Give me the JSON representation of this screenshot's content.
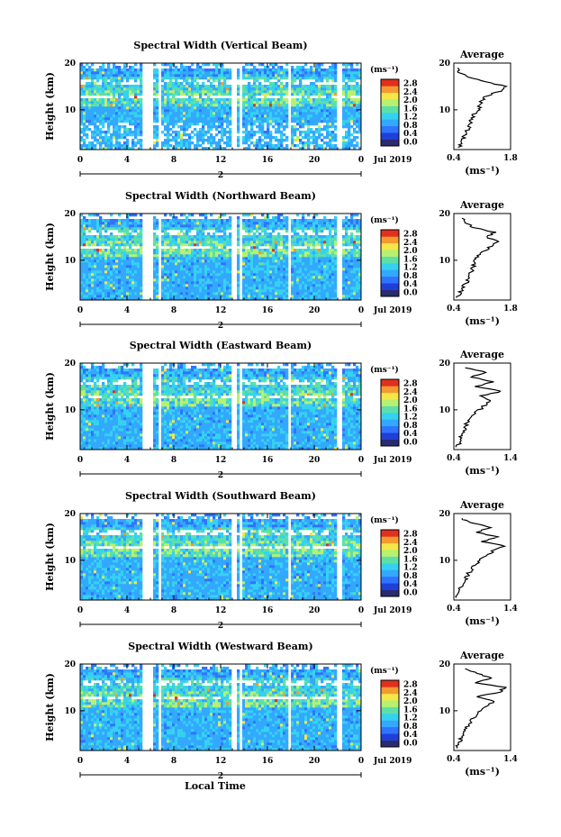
{
  "figure": {
    "bottom_label": "Local Time",
    "date_label": "Jul 2019",
    "day_label": "2",
    "colorbar_unit": "(ms⁻¹)",
    "colorbar_ticks": [
      "0.0",
      "0.4",
      "0.8",
      "1.2",
      "1.6",
      "2.0",
      "2.4",
      "2.8"
    ],
    "colormap": [
      "#2a2a6e",
      "#1f3fd9",
      "#2f74ff",
      "#33a8ff",
      "#35d2f0",
      "#5de0a8",
      "#b8f070",
      "#f5e64a",
      "#f59a2e",
      "#e0301e"
    ]
  },
  "chart_data": [
    {
      "type": "heatmap",
      "title": "Spectral Width (Vertical Beam)",
      "ylabel": "Height (km)",
      "xlabel": "Local Time",
      "x_ticks": [
        "0",
        "4",
        "8",
        "12",
        "16",
        "20",
        "0"
      ],
      "y_ticks": [
        "10",
        "20"
      ],
      "xlim": [
        0,
        24
      ],
      "ylim": [
        1.5,
        20
      ],
      "gaps_hours": [
        [
          5.2,
          6.3
        ],
        [
          6.7,
          7.0
        ],
        [
          12.9,
          13.4
        ],
        [
          13.6,
          13.9
        ],
        [
          17.7,
          17.9
        ],
        [
          22.0,
          22.4
        ]
      ],
      "profile": {
        "title": "Average",
        "xlabel": "(ms⁻¹)",
        "x_ticks": [
          "0.4",
          "1.8"
        ],
        "xlim": [
          0.4,
          1.8
        ],
        "y_ticks": [
          "10",
          "20"
        ],
        "heights": [
          2,
          3,
          4,
          5,
          6,
          7,
          8,
          9,
          10,
          11,
          12,
          13,
          14,
          15,
          16,
          17,
          18,
          19
        ],
        "values": [
          0.55,
          0.6,
          0.65,
          0.7,
          0.75,
          0.8,
          0.85,
          0.9,
          1.0,
          1.05,
          1.1,
          1.2,
          1.55,
          1.7,
          1.2,
          0.7,
          0.55,
          0.5
        ]
      }
    },
    {
      "type": "heatmap",
      "title": "Spectral Width (Northward Beam)",
      "ylabel": "Height (km)",
      "xlabel": "Local Time",
      "x_ticks": [
        "0",
        "4",
        "8",
        "12",
        "16",
        "20",
        "0"
      ],
      "y_ticks": [
        "10",
        "20"
      ],
      "xlim": [
        0,
        24
      ],
      "ylim": [
        1.5,
        20
      ],
      "gaps_hours": [
        [
          5.2,
          6.3
        ],
        [
          6.7,
          7.0
        ],
        [
          12.9,
          13.4
        ],
        [
          13.6,
          13.9
        ],
        [
          17.7,
          17.9
        ],
        [
          22.0,
          22.4
        ]
      ],
      "profile": {
        "title": "Average",
        "xlabel": "(ms⁻¹)",
        "x_ticks": [
          "0.4",
          "1.8"
        ],
        "xlim": [
          0.4,
          1.8
        ],
        "y_ticks": [
          "10",
          "20"
        ],
        "heights": [
          2,
          3,
          4,
          5,
          6,
          7,
          8,
          9,
          10,
          11,
          12,
          13,
          14,
          15,
          16,
          17,
          18,
          19
        ],
        "values": [
          0.5,
          0.55,
          0.6,
          0.7,
          0.75,
          0.8,
          0.85,
          0.9,
          0.95,
          1.0,
          1.15,
          1.3,
          1.5,
          1.2,
          1.4,
          0.9,
          0.7,
          0.6
        ]
      }
    },
    {
      "type": "heatmap",
      "title": "Spectral Width (Eastward Beam)",
      "ylabel": "Height (km)",
      "xlabel": "Local Time",
      "x_ticks": [
        "0",
        "4",
        "8",
        "12",
        "16",
        "20",
        "0"
      ],
      "y_ticks": [
        "10",
        "20"
      ],
      "xlim": [
        0,
        24
      ],
      "ylim": [
        1.5,
        20
      ],
      "gaps_hours": [
        [
          5.2,
          6.3
        ],
        [
          6.7,
          7.0
        ],
        [
          12.9,
          13.4
        ],
        [
          13.6,
          13.9
        ],
        [
          17.7,
          17.9
        ],
        [
          22.0,
          22.4
        ]
      ],
      "profile": {
        "title": "Average",
        "xlabel": "(ms⁻¹)",
        "x_ticks": [
          "0.4",
          "1.4"
        ],
        "xlim": [
          0.4,
          1.4
        ],
        "y_ticks": [
          "10",
          "20"
        ],
        "heights": [
          2,
          3,
          4,
          5,
          6,
          7,
          8,
          9,
          10,
          11,
          12,
          13,
          14,
          15,
          16,
          17,
          18,
          19
        ],
        "values": [
          0.45,
          0.5,
          0.5,
          0.55,
          0.6,
          0.62,
          0.7,
          0.75,
          0.85,
          0.95,
          1.05,
          0.9,
          1.25,
          0.8,
          1.1,
          0.7,
          1.0,
          0.6
        ]
      }
    },
    {
      "type": "heatmap",
      "title": "Spectral Width (Southward Beam)",
      "ylabel": "Height (km)",
      "xlabel": "Local Time",
      "x_ticks": [
        "0",
        "4",
        "8",
        "12",
        "16",
        "20",
        "0"
      ],
      "y_ticks": [
        "10",
        "20"
      ],
      "xlim": [
        0,
        24
      ],
      "ylim": [
        1.5,
        20
      ],
      "gaps_hours": [
        [
          5.2,
          6.3
        ],
        [
          6.7,
          7.0
        ],
        [
          12.9,
          13.4
        ],
        [
          13.6,
          13.9
        ],
        [
          17.7,
          17.9
        ],
        [
          22.0,
          22.4
        ]
      ],
      "profile": {
        "title": "Average",
        "xlabel": "(ms⁻¹)",
        "x_ticks": [
          "0.4",
          "1.4"
        ],
        "xlim": [
          0.4,
          1.4
        ],
        "y_ticks": [
          "10",
          "20"
        ],
        "heights": [
          2,
          3,
          4,
          5,
          6,
          7,
          8,
          9,
          10,
          11,
          12,
          13,
          14,
          15,
          16,
          17,
          18,
          19
        ],
        "values": [
          0.45,
          0.48,
          0.5,
          0.55,
          0.6,
          0.65,
          0.7,
          0.78,
          0.85,
          0.95,
          1.1,
          1.3,
          0.9,
          1.2,
          0.8,
          1.05,
          0.7,
          0.55
        ]
      }
    },
    {
      "type": "heatmap",
      "title": "Spectral Width (Westward Beam)",
      "ylabel": "Height (km)",
      "xlabel": "Local Time",
      "x_ticks": [
        "0",
        "4",
        "8",
        "12",
        "16",
        "20",
        "0"
      ],
      "y_ticks": [
        "10",
        "20"
      ],
      "xlim": [
        0,
        24
      ],
      "ylim": [
        1.5,
        20
      ],
      "gaps_hours": [
        [
          5.2,
          6.3
        ],
        [
          6.7,
          7.0
        ],
        [
          12.9,
          13.4
        ],
        [
          13.6,
          13.9
        ],
        [
          17.7,
          17.9
        ],
        [
          22.0,
          22.4
        ]
      ],
      "profile": {
        "title": "Average",
        "xlabel": "(ms⁻¹)",
        "x_ticks": [
          "0.4",
          "1.4"
        ],
        "xlim": [
          0.4,
          1.4
        ],
        "y_ticks": [
          "10",
          "20"
        ],
        "heights": [
          2,
          3,
          4,
          5,
          6,
          7,
          8,
          9,
          10,
          11,
          12,
          13,
          14,
          15,
          16,
          17,
          18,
          19
        ],
        "values": [
          0.45,
          0.5,
          0.52,
          0.55,
          0.6,
          0.65,
          0.72,
          0.8,
          0.88,
          1.0,
          1.1,
          0.8,
          1.2,
          1.3,
          0.75,
          1.1,
          0.8,
          0.6
        ]
      }
    }
  ]
}
